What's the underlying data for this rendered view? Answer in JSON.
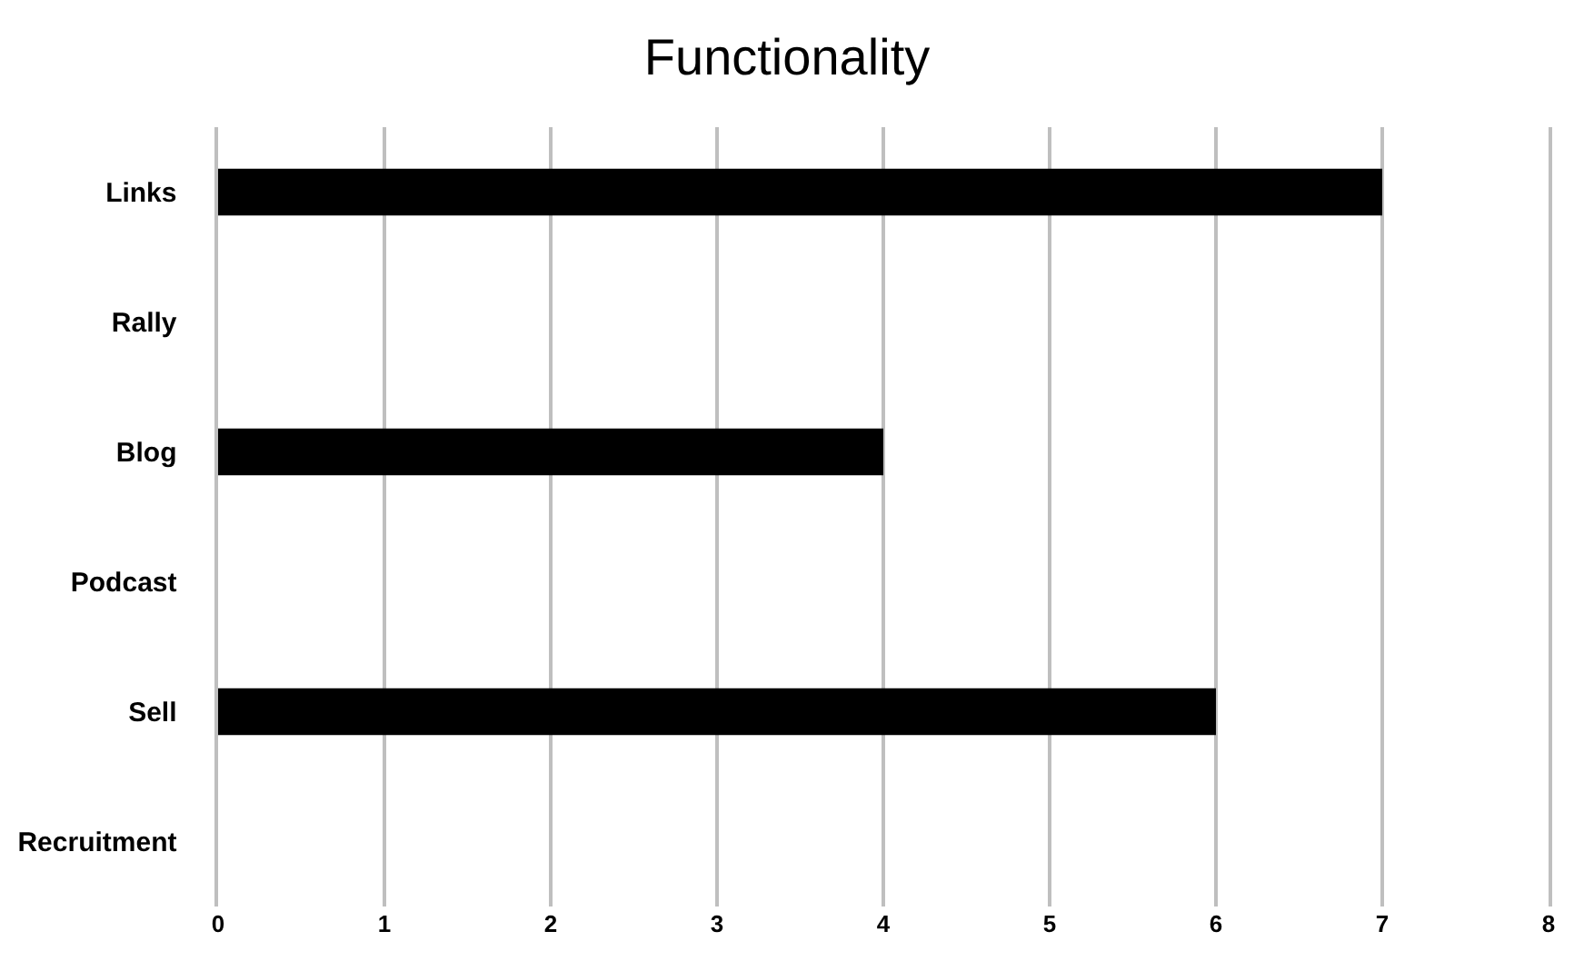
{
  "chart_data": {
    "type": "bar",
    "orientation": "horizontal",
    "title": "Functionality",
    "categories": [
      "Links",
      "Rally",
      "Blog",
      "Podcast",
      "Sell",
      "Recruitment"
    ],
    "values": [
      7,
      0,
      4,
      0,
      6,
      0
    ],
    "color": "#000000",
    "xlim": [
      0,
      8
    ],
    "xticks": [
      0,
      1,
      2,
      3,
      4,
      5,
      6,
      7,
      8
    ],
    "grid": "x",
    "legend": false
  }
}
